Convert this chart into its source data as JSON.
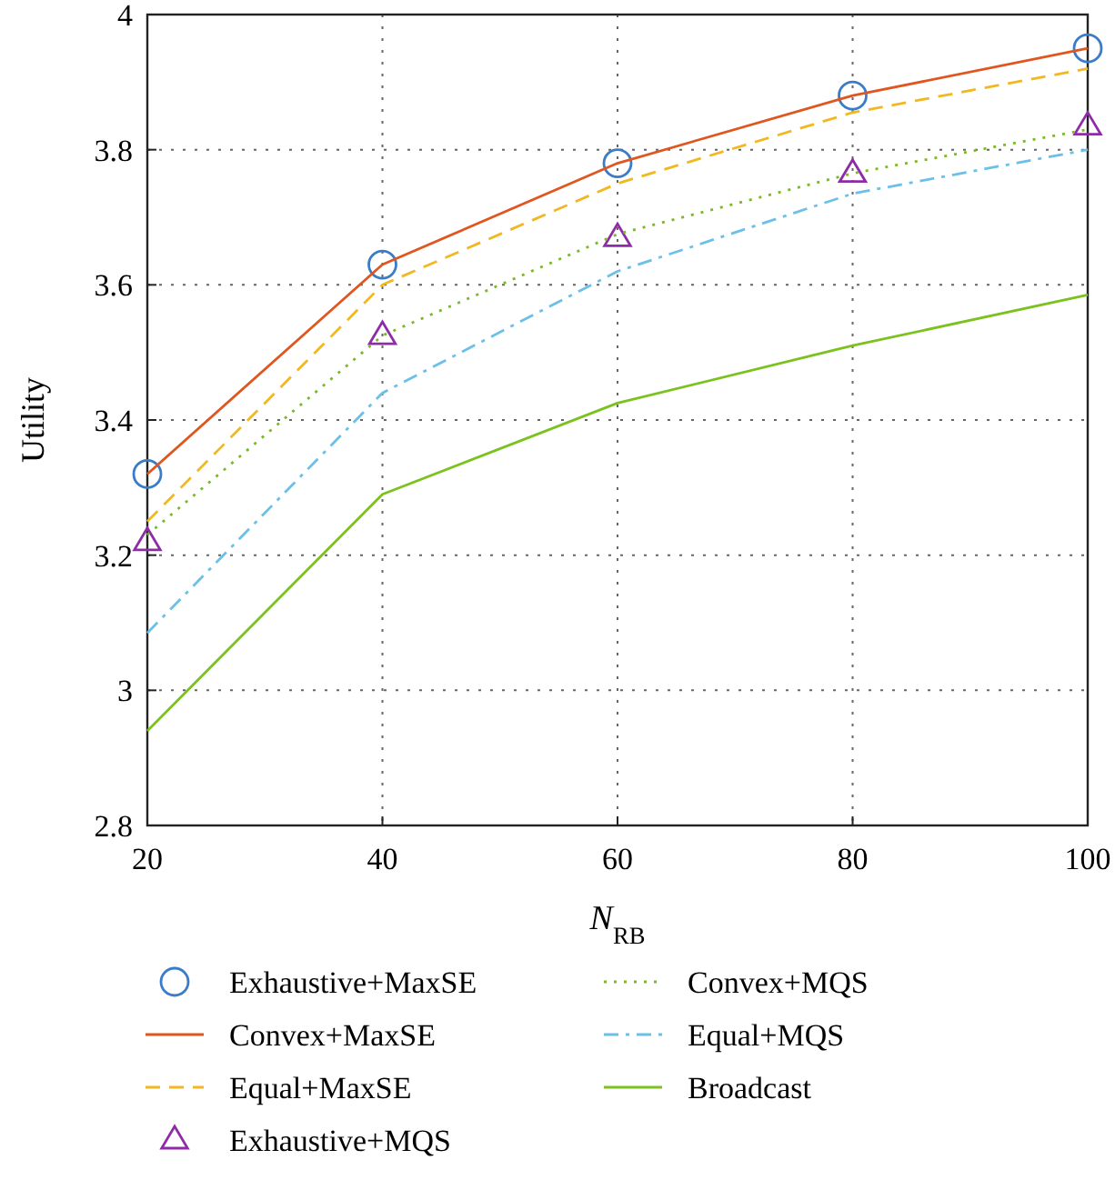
{
  "chart_data": {
    "type": "line",
    "xlabel": "N$_{RB}$",
    "ylabel": "Utility",
    "xlim": [
      20,
      100
    ],
    "ylim": [
      2.8,
      4
    ],
    "xticks": [
      20,
      40,
      60,
      80,
      100
    ],
    "yticks": [
      2.8,
      3,
      3.2,
      3.4,
      3.6,
      3.8,
      4
    ],
    "grid": true,
    "legend": "bottom",
    "x": [
      20,
      40,
      60,
      80,
      100
    ],
    "series": [
      {
        "name": "Exhaustive+MaxSE",
        "type": "scatter",
        "marker": "circle",
        "color": "#3a7cc8",
        "values": [
          3.32,
          3.63,
          3.78,
          3.88,
          3.95
        ]
      },
      {
        "name": "Convex+MaxSE",
        "type": "line",
        "line_style": "solid",
        "color": "#e0561f",
        "values": [
          3.32,
          3.63,
          3.78,
          3.88,
          3.95
        ]
      },
      {
        "name": "Equal+MaxSE",
        "type": "line",
        "line_style": "dashed",
        "color": "#f2b820",
        "values": [
          3.25,
          3.6,
          3.75,
          3.855,
          3.92
        ]
      },
      {
        "name": "Exhaustive+MQS",
        "type": "scatter",
        "marker": "triangle",
        "color": "#8e2ca8",
        "values": [
          3.22,
          3.525,
          3.67,
          3.765,
          3.835
        ]
      },
      {
        "name": "Convex+MQS",
        "type": "line",
        "line_style": "dotted",
        "color": "#7cb82a",
        "values": [
          3.23,
          3.525,
          3.675,
          3.765,
          3.83
        ]
      },
      {
        "name": "Equal+MQS",
        "type": "line",
        "line_style": "dashdot",
        "color": "#6cc0e8",
        "values": [
          3.085,
          3.44,
          3.62,
          3.735,
          3.8
        ]
      },
      {
        "name": "Broadcast",
        "type": "line",
        "line_style": "solid",
        "color": "#7cc21e",
        "values": [
          2.94,
          3.29,
          3.425,
          3.51,
          3.585
        ]
      }
    ]
  }
}
